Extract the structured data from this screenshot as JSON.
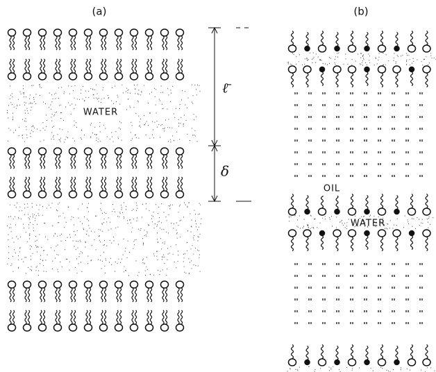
{
  "panels": {
    "a": {
      "label": "(a)",
      "region": "WATER",
      "period": "ℓ̄",
      "thickness": "δ"
    },
    "b": {
      "label": "(b)",
      "oil": "OIL",
      "water": "WATER"
    }
  }
}
